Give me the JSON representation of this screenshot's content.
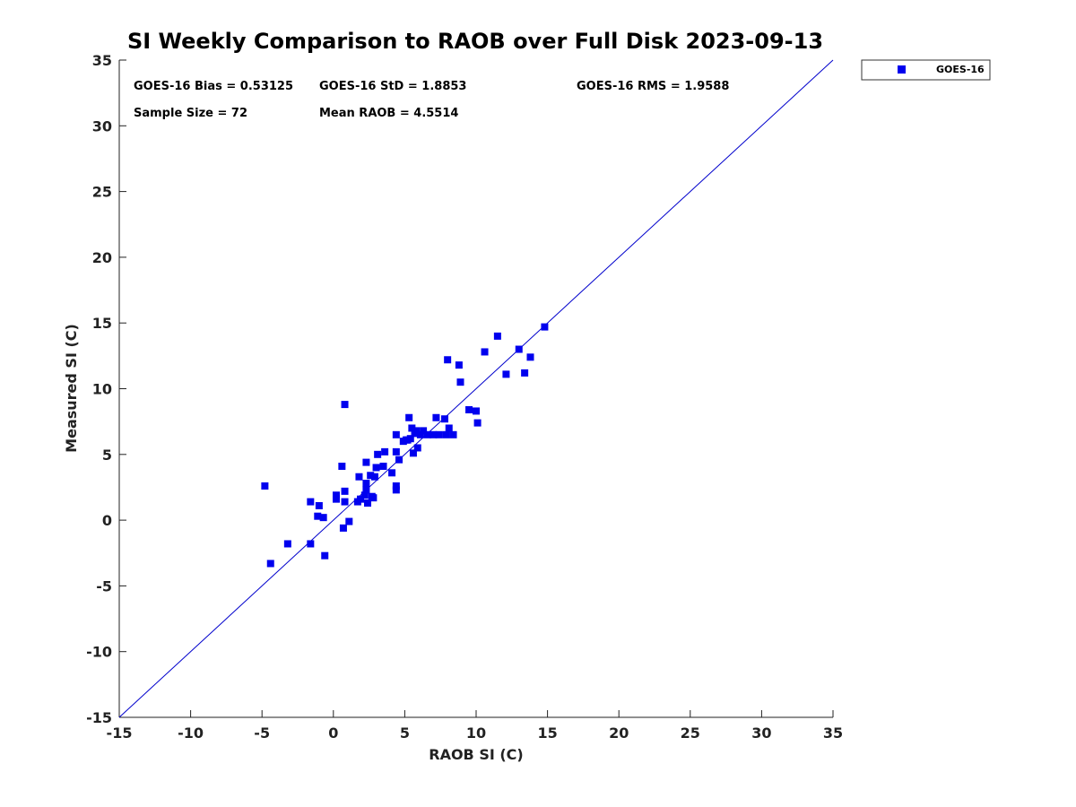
{
  "chart_data": {
    "type": "scatter",
    "title": "SI Weekly Comparison to RAOB over Full Disk 2023-09-13",
    "xlabel": "RAOB SI (C)",
    "ylabel": "Measured SI (C)",
    "xlim": [
      -15,
      35
    ],
    "ylim": [
      -15,
      35
    ],
    "xticks": [
      -15,
      -10,
      -5,
      0,
      5,
      10,
      15,
      20,
      25,
      30,
      35
    ],
    "yticks": [
      -15,
      -10,
      -5,
      0,
      5,
      10,
      15,
      20,
      25,
      30,
      35
    ],
    "grid": false,
    "legend": {
      "position": "top-right",
      "entries": [
        "GOES-16"
      ]
    },
    "reference_line": {
      "label": "1:1 line",
      "from": [
        -15,
        -15
      ],
      "to": [
        35,
        35
      ],
      "color": "#0000cc"
    },
    "marker_color": "#0000ee",
    "stats": [
      {
        "id": "bias",
        "text": "GOES-16 Bias = 0.53125"
      },
      {
        "id": "std",
        "text": "GOES-16 StD = 1.8853"
      },
      {
        "id": "rms",
        "text": "GOES-16 RMS = 1.9588"
      },
      {
        "id": "n",
        "text": "Sample Size = 72"
      },
      {
        "id": "mean",
        "text": "Mean RAOB = 4.5514"
      }
    ],
    "series": [
      {
        "name": "GOES-16",
        "points": [
          [
            -4.8,
            2.6
          ],
          [
            -4.4,
            -3.3
          ],
          [
            -3.2,
            -1.8
          ],
          [
            -1.6,
            -1.8
          ],
          [
            -1.6,
            1.4
          ],
          [
            -1.1,
            0.3
          ],
          [
            -1.0,
            1.1
          ],
          [
            -0.7,
            0.2
          ],
          [
            -0.6,
            -2.7
          ],
          [
            0.2,
            1.6
          ],
          [
            0.2,
            1.9
          ],
          [
            0.6,
            4.1
          ],
          [
            0.7,
            -0.6
          ],
          [
            0.8,
            8.8
          ],
          [
            0.8,
            1.4
          ],
          [
            0.8,
            2.2
          ],
          [
            1.1,
            -0.1
          ],
          [
            1.7,
            1.4
          ],
          [
            1.8,
            3.3
          ],
          [
            1.9,
            1.6
          ],
          [
            2.2,
            1.9
          ],
          [
            2.3,
            2.3
          ],
          [
            2.3,
            2.8
          ],
          [
            2.3,
            4.4
          ],
          [
            2.4,
            1.3
          ],
          [
            2.6,
            3.4
          ],
          [
            2.7,
            1.8
          ],
          [
            2.8,
            1.7
          ],
          [
            2.9,
            3.3
          ],
          [
            3.0,
            4.0
          ],
          [
            3.1,
            5.0
          ],
          [
            3.5,
            4.1
          ],
          [
            3.6,
            5.2
          ],
          [
            4.1,
            3.6
          ],
          [
            4.4,
            2.3
          ],
          [
            4.4,
            2.6
          ],
          [
            4.4,
            5.2
          ],
          [
            4.4,
            6.5
          ],
          [
            4.6,
            4.6
          ],
          [
            4.9,
            6.0
          ],
          [
            5.1,
            6.1
          ],
          [
            5.3,
            7.8
          ],
          [
            5.4,
            6.2
          ],
          [
            5.5,
            7.0
          ],
          [
            5.6,
            5.1
          ],
          [
            5.7,
            6.6
          ],
          [
            5.8,
            6.8
          ],
          [
            5.9,
            5.5
          ],
          [
            6.1,
            6.5
          ],
          [
            6.3,
            6.8
          ],
          [
            6.6,
            6.5
          ],
          [
            7.0,
            6.5
          ],
          [
            7.2,
            7.8
          ],
          [
            7.4,
            6.5
          ],
          [
            7.8,
            7.7
          ],
          [
            7.9,
            6.5
          ],
          [
            8.0,
            12.2
          ],
          [
            8.1,
            7.0
          ],
          [
            8.4,
            6.5
          ],
          [
            8.8,
            11.8
          ],
          [
            8.9,
            10.5
          ],
          [
            9.5,
            8.4
          ],
          [
            10.0,
            8.3
          ],
          [
            10.1,
            7.4
          ],
          [
            10.6,
            12.8
          ],
          [
            11.5,
            14.0
          ],
          [
            12.1,
            11.1
          ],
          [
            13.0,
            13.0
          ],
          [
            13.4,
            11.2
          ],
          [
            13.8,
            12.4
          ],
          [
            14.8,
            14.7
          ],
          [
            5.2,
            6.1
          ]
        ]
      }
    ]
  }
}
